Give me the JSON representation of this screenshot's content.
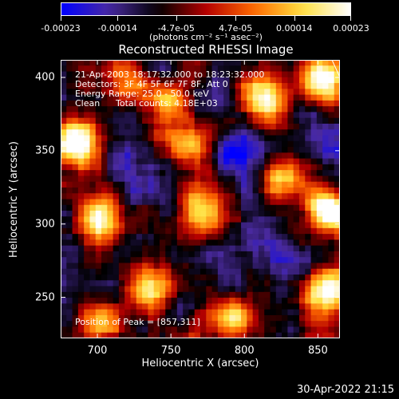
{
  "chart_data": {
    "type": "heatmap",
    "title": "Reconstructed RHESSI Image",
    "xlabel": "Heliocentric X (arcsec)",
    "ylabel": "Heliocentric Y (arcsec)",
    "xlim": [
      675,
      865
    ],
    "ylim": [
      222,
      412
    ],
    "x_ticks": [
      700,
      750,
      800,
      850
    ],
    "y_ticks": [
      250,
      300,
      350,
      400
    ],
    "colorbar": {
      "tick_labels": [
        "-0.00023",
        "-0.00014",
        "-4.7e-05",
        "4.7e-05",
        "0.00014",
        "0.00023"
      ],
      "tick_values": [
        -0.00023,
        -0.00014,
        -4.7e-05,
        4.7e-05,
        0.00014,
        0.00023
      ],
      "units": "(photons cm⁻² s⁻¹ asec⁻²)",
      "range": [
        -0.00023,
        0.00023
      ],
      "colormap": [
        "#0000ff",
        "#4a2aa0",
        "#000000",
        "#b40000",
        "#ff6a00",
        "#ffe040",
        "#ffffff"
      ]
    },
    "annotations": {
      "time_range": "21-Apr-2003 18:17:32.000 to 18:23:32.000",
      "detectors": "Detectors: 3F 4F 5F 6F 7F 8F, Att 0",
      "energy": "Energy Range: 25.0 - 50.0 keV",
      "method": "Clean",
      "counts": "Total counts: 4.18E+03",
      "peak": "Position of Peak = [857,311]"
    },
    "peak_position": [
      857,
      311
    ],
    "grid_resolution": [
      48,
      48
    ],
    "bright_sources": [
      {
        "x": 685,
        "y": 355,
        "value": 0.00023
      },
      {
        "x": 700,
        "y": 305,
        "value": 0.00016
      },
      {
        "x": 750,
        "y": 382,
        "value": 0.00012
      },
      {
        "x": 773,
        "y": 308,
        "value": 0.00018
      },
      {
        "x": 812,
        "y": 385,
        "value": 0.00014
      },
      {
        "x": 855,
        "y": 398,
        "value": 0.00022
      },
      {
        "x": 857,
        "y": 311,
        "value": 0.00023
      },
      {
        "x": 857,
        "y": 255,
        "value": 0.00021
      },
      {
        "x": 735,
        "y": 255,
        "value": 0.00015
      },
      {
        "x": 790,
        "y": 235,
        "value": 0.00016
      },
      {
        "x": 705,
        "y": 232,
        "value": 0.00014
      },
      {
        "x": 825,
        "y": 330,
        "value": 0.00011
      },
      {
        "x": 760,
        "y": 350,
        "value": 9e-05
      },
      {
        "x": 720,
        "y": 400,
        "value": 8e-05
      }
    ],
    "dark_regions": [
      {
        "x": 800,
        "y": 345,
        "value": -0.00021
      },
      {
        "x": 745,
        "y": 325,
        "value": -0.00016
      },
      {
        "x": 722,
        "y": 240,
        "value": -0.00014
      },
      {
        "x": 830,
        "y": 268,
        "value": -0.00015
      },
      {
        "x": 790,
        "y": 280,
        "value": -0.00012
      },
      {
        "x": 710,
        "y": 370,
        "value": -0.0001
      },
      {
        "x": 840,
        "y": 355,
        "value": -0.00013
      }
    ]
  },
  "footer": {
    "timestamp": "30-Apr-2022 21:15"
  }
}
